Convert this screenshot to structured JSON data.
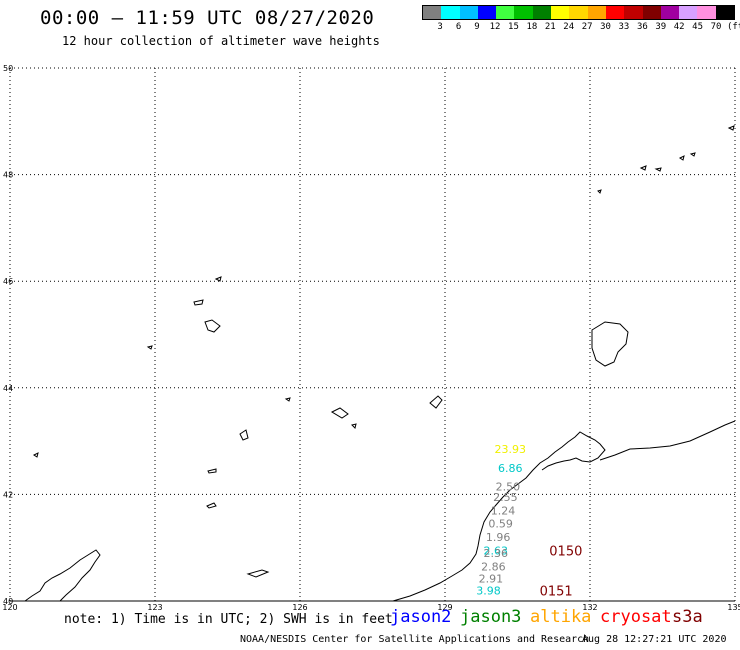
{
  "title": "00:00 – 11:59 UTC 08/27/2020",
  "subtitle": "12 hour collection of altimeter wave heights",
  "legend": {
    "unit": "(ft)",
    "colors": [
      "#808080",
      "#00ffff",
      "#00bfff",
      "#0000ff",
      "#40ff40",
      "#00c000",
      "#008000",
      "#ffff00",
      "#ffd700",
      "#ffa500",
      "#ff0000",
      "#c00000",
      "#800000",
      "#a000a0",
      "#d8a0ff",
      "#ff90e0",
      "#000000"
    ],
    "labels": [
      "3",
      "6",
      "9",
      "12",
      "15",
      "18",
      "21",
      "24",
      "27",
      "30",
      "33",
      "36",
      "39",
      "42",
      "45",
      "70"
    ]
  },
  "axes": {
    "lat_labels": [
      "50",
      "48",
      "46",
      "44",
      "42",
      "40"
    ],
    "lon_labels": [
      "120",
      "123",
      "126",
      "129",
      "132",
      "135"
    ]
  },
  "chart_data": {
    "type": "scatter",
    "title": "00:00 – 11:59 UTC 08/27/2020",
    "subtitle": "12 hour collection of altimeter wave heights",
    "xlim": [
      120,
      135
    ],
    "ylim": [
      40,
      50
    ],
    "grid": true,
    "points": [
      {
        "label": "23.93",
        "lon": 130.35,
        "lat": 42.85,
        "color": "#f0f000"
      },
      {
        "label": "6.86",
        "lon": 130.35,
        "lat": 42.5,
        "color": "#00c8c8"
      },
      {
        "label": "2.50",
        "lon": 130.3,
        "lat": 42.15,
        "color": "#808080"
      },
      {
        "label": "2.55",
        "lon": 130.25,
        "lat": 41.95,
        "color": "#808080"
      },
      {
        "label": "1.24",
        "lon": 130.2,
        "lat": 41.7,
        "color": "#808080"
      },
      {
        "label": "0.59",
        "lon": 130.15,
        "lat": 41.45,
        "color": "#808080"
      },
      {
        "label": "1.96",
        "lon": 130.1,
        "lat": 41.2,
        "color": "#808080"
      },
      {
        "label": "2.63",
        "lon": 130.05,
        "lat": 40.95,
        "color": "#00c8c8"
      },
      {
        "label": "2.36",
        "lon": 130.05,
        "lat": 40.9,
        "color": "#808080"
      },
      {
        "label": "2.86",
        "lon": 130.0,
        "lat": 40.65,
        "color": "#808080"
      },
      {
        "label": "2.91",
        "lon": 129.95,
        "lat": 40.42,
        "color": "#808080"
      },
      {
        "label": "3.98",
        "lon": 129.9,
        "lat": 40.2,
        "color": "#00c8c8"
      }
    ],
    "pass_labels": [
      {
        "label": "0150",
        "lon": 131.5,
        "lat": 40.95,
        "color": "#800000"
      },
      {
        "label": "0151",
        "lon": 131.3,
        "lat": 40.2,
        "color": "#800000"
      }
    ]
  },
  "footer": {
    "note": "note: 1) Time is in UTC; 2) SWH is in feet",
    "satellites": [
      {
        "name": "jason2",
        "color": "#0000ff"
      },
      {
        "name": "jason3",
        "color": "#008000"
      },
      {
        "name": "altika",
        "color": "#ffa500"
      },
      {
        "name": "cryosat",
        "color": "#ff0000"
      },
      {
        "name": "s3a",
        "color": "#800000"
      }
    ],
    "credit": "NOAA/NESDIS Center for Satellite Applications and Research",
    "timestamp": "Aug 28 12:27:21 UTC 2020"
  }
}
